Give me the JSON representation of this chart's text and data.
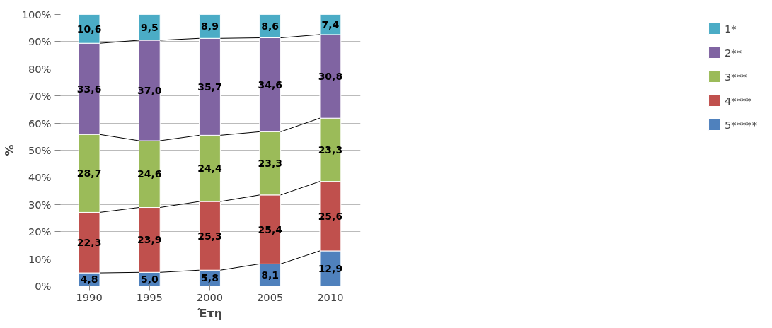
{
  "chart_data": {
    "type": "bar",
    "stacked": true,
    "xlabel": "Έτη",
    "ylabel": "%",
    "categories": [
      "1990",
      "1995",
      "2000",
      "2005",
      "2010"
    ],
    "series": [
      {
        "name": "5*****",
        "color": "#4f81bd",
        "values": [
          4.8,
          5.0,
          5.8,
          8.1,
          12.9
        ],
        "value_labels": [
          "4,8",
          "5,0",
          "5,8",
          "8,1",
          "12,9"
        ]
      },
      {
        "name": "4****",
        "color": "#c0504d",
        "values": [
          22.3,
          23.9,
          25.3,
          25.4,
          25.6
        ],
        "value_labels": [
          "22,3",
          "23,9",
          "25,3",
          "25,4",
          "25,6"
        ]
      },
      {
        "name": "3***",
        "color": "#9bbb59",
        "values": [
          28.7,
          24.6,
          24.4,
          23.3,
          23.3
        ],
        "value_labels": [
          "28,7",
          "24,6",
          "24,4",
          "23,3",
          "23,3"
        ]
      },
      {
        "name": "2**",
        "color": "#8064a2",
        "values": [
          33.6,
          37.0,
          35.7,
          34.6,
          30.8
        ],
        "value_labels": [
          "33,6",
          "37,0",
          "35,7",
          "34,6",
          "30,8"
        ]
      },
      {
        "name": "1*",
        "color": "#4bacc6",
        "values": [
          10.6,
          9.5,
          8.9,
          8.6,
          7.4
        ],
        "value_labels": [
          "10,6",
          "9,5",
          "8,9",
          "8,6",
          "7,4"
        ]
      }
    ],
    "ylim": [
      0,
      100
    ],
    "yticks": [
      {
        "value": 0,
        "label": "0%"
      },
      {
        "value": 10,
        "label": "10%"
      },
      {
        "value": 20,
        "label": "20%"
      },
      {
        "value": 30,
        "label": "30%"
      },
      {
        "value": 40,
        "label": "40%"
      },
      {
        "value": 50,
        "label": "50%"
      },
      {
        "value": 60,
        "label": "60%"
      },
      {
        "value": 70,
        "label": "70%"
      },
      {
        "value": 80,
        "label": "80%"
      },
      {
        "value": 90,
        "label": "90%"
      },
      {
        "value": 100,
        "label": "100%"
      }
    ],
    "grid": "y",
    "legend": "right"
  }
}
